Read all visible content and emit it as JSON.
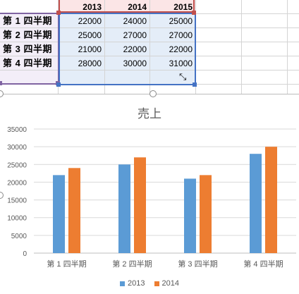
{
  "sheet": {
    "years": [
      "2013",
      "2014",
      "2015"
    ],
    "rows": [
      {
        "label": "第 1 四半期",
        "values": [
          "22000",
          "24000",
          "25000"
        ]
      },
      {
        "label": "第 2 四半期",
        "values": [
          "25000",
          "27000",
          "27000"
        ]
      },
      {
        "label": "第 3 四半期",
        "values": [
          "21000",
          "22000",
          "22000"
        ]
      },
      {
        "label": "第 4 四半期",
        "values": [
          "28000",
          "30000",
          "31000"
        ]
      }
    ]
  },
  "chart_data": {
    "type": "bar",
    "title": "売上",
    "categories": [
      "第 1 四半期",
      "第 2 四半期",
      "第 3 四半期",
      "第 4 四半期"
    ],
    "series": [
      {
        "name": "2013",
        "color": "#5b9bd5",
        "values": [
          22000,
          25000,
          21000,
          28000
        ]
      },
      {
        "name": "2014",
        "color": "#ed7d31",
        "values": [
          24000,
          27000,
          22000,
          30000
        ]
      }
    ],
    "yticks": [
      "0",
      "5000",
      "10000",
      "15000",
      "20000",
      "25000",
      "30000",
      "35000"
    ],
    "ylim": [
      0,
      35000
    ],
    "grid": true,
    "legend": "bottom"
  }
}
